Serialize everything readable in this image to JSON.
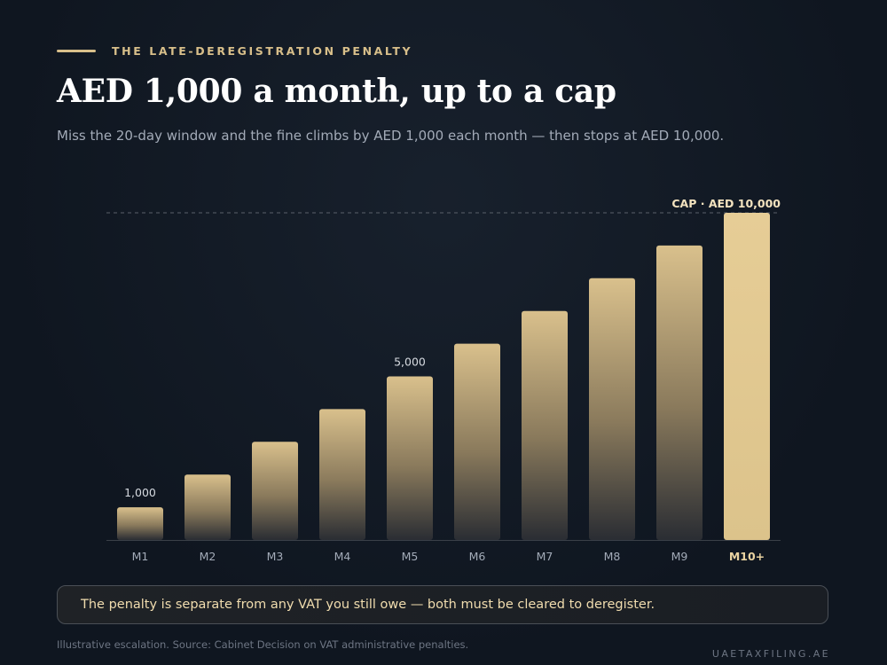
{
  "header": {
    "kicker": "THE LATE-DEREGISTRATION PENALTY",
    "title": "AED 1,000 a month, up to a cap",
    "subtitle": "Miss the 20-day window and the fine climbs by AED 1,000 each month — then stops at AED 10,000."
  },
  "chart_data": {
    "type": "bar",
    "categories": [
      "M1",
      "M2",
      "M3",
      "M4",
      "M5",
      "M6",
      "M7",
      "M8",
      "M9",
      "M10+"
    ],
    "values": [
      1000,
      2000,
      3000,
      4000,
      5000,
      6000,
      7000,
      8000,
      9000,
      10000
    ],
    "data_labels": [
      {
        "index": 0,
        "text": "1,000"
      },
      {
        "index": 4,
        "text": "5,000"
      }
    ],
    "highlight_index": 9,
    "reference_line": {
      "value": 10000,
      "label": "CAP · AED 10,000",
      "style": "dashed"
    },
    "ylim": [
      0,
      10000
    ],
    "grid": false,
    "legend": "none",
    "colors": {
      "bar_top": "#d8bf8a",
      "bar_bottom": "#2a2d33",
      "highlight": "#e2c98f"
    }
  },
  "note": "The penalty is separate from any VAT you still owe — both must be cleared to deregister.",
  "footer": {
    "source": "Illustrative escalation. Source: Cabinet Decision on VAT administrative penalties.",
    "brand": "UAETAXFILING.AE"
  }
}
